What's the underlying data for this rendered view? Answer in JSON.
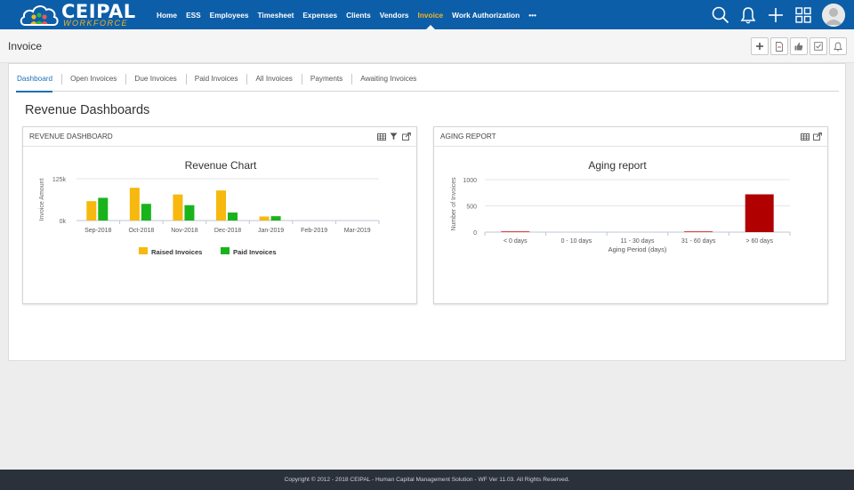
{
  "app": {
    "logo_text": "CEIPAL",
    "logo_sub": "WORKFORCE",
    "nav": [
      {
        "label": "Home"
      },
      {
        "label": "ESS"
      },
      {
        "label": "Employees"
      },
      {
        "label": "Timesheet"
      },
      {
        "label": "Expenses"
      },
      {
        "label": "Clients"
      },
      {
        "label": "Vendors"
      },
      {
        "label": "Invoice",
        "active": true
      },
      {
        "label": "Work Authorization"
      },
      {
        "label": "•••"
      }
    ],
    "top_icons": [
      "search-icon",
      "bell-icon",
      "plus-icon",
      "grid-icon"
    ]
  },
  "page": {
    "title": "Invoice",
    "actions": [
      "add-icon",
      "pdf-icon",
      "thumbs-up-icon",
      "checklist-icon",
      "bell-icon"
    ]
  },
  "tabs": [
    {
      "label": "Dashboard",
      "active": true
    },
    {
      "label": "Open Invoices"
    },
    {
      "label": "Due Invoices"
    },
    {
      "label": "Paid Invoices"
    },
    {
      "label": "All Invoices"
    },
    {
      "label": "Payments"
    },
    {
      "label": "Awaiting Invoices"
    }
  ],
  "section_title": "Revenue Dashboards",
  "revenue_panel": {
    "header": "REVENUE DASHBOARD",
    "icons": [
      "table-icon",
      "filter-icon",
      "export-icon"
    ]
  },
  "aging_panel": {
    "header": "AGING REPORT",
    "icons": [
      "table-icon",
      "export-icon"
    ]
  },
  "chart_data": [
    {
      "type": "bar",
      "title": "Revenue Chart",
      "ylabel": "Invoice Amount",
      "xlabel": "",
      "categories": [
        "Sep-2018",
        "Oct-2018",
        "Nov-2018",
        "Dec-2018",
        "Jan-2019",
        "Feb-2019",
        "Mar-2019"
      ],
      "yticks": [
        "0k",
        "125k"
      ],
      "ylim": [
        0,
        125000
      ],
      "series": [
        {
          "name": "Raised Invoices",
          "color": "#f7b80f",
          "values": [
            58000,
            98000,
            78000,
            90000,
            12000,
            0,
            0
          ]
        },
        {
          "name": "Paid Invoices",
          "color": "#19b41c",
          "values": [
            68000,
            50000,
            46000,
            24000,
            13000,
            0,
            0
          ]
        }
      ],
      "legend": "bottom",
      "grid": true
    },
    {
      "type": "bar",
      "title": "Aging report",
      "ylabel": "Number of Invoices",
      "xlabel": "Aging Period (days)",
      "categories": [
        "< 0 days",
        "0 - 10 days",
        "11 - 30 days",
        "31 - 60 days",
        "> 60 days"
      ],
      "yticks": [
        "0",
        "500",
        "1000"
      ],
      "ylim": [
        0,
        1000
      ],
      "values": [
        10,
        0,
        0,
        12,
        720
      ],
      "colors": [
        "#e0434a",
        "#e0434a",
        "#e0434a",
        "#e0434a",
        "#b00000"
      ],
      "grid": true
    }
  ],
  "footer": "Copyright © 2012 - 2018 CEIPAL - Human Capital Management Solution - WF Ver 11.03. All Rights Reserved."
}
